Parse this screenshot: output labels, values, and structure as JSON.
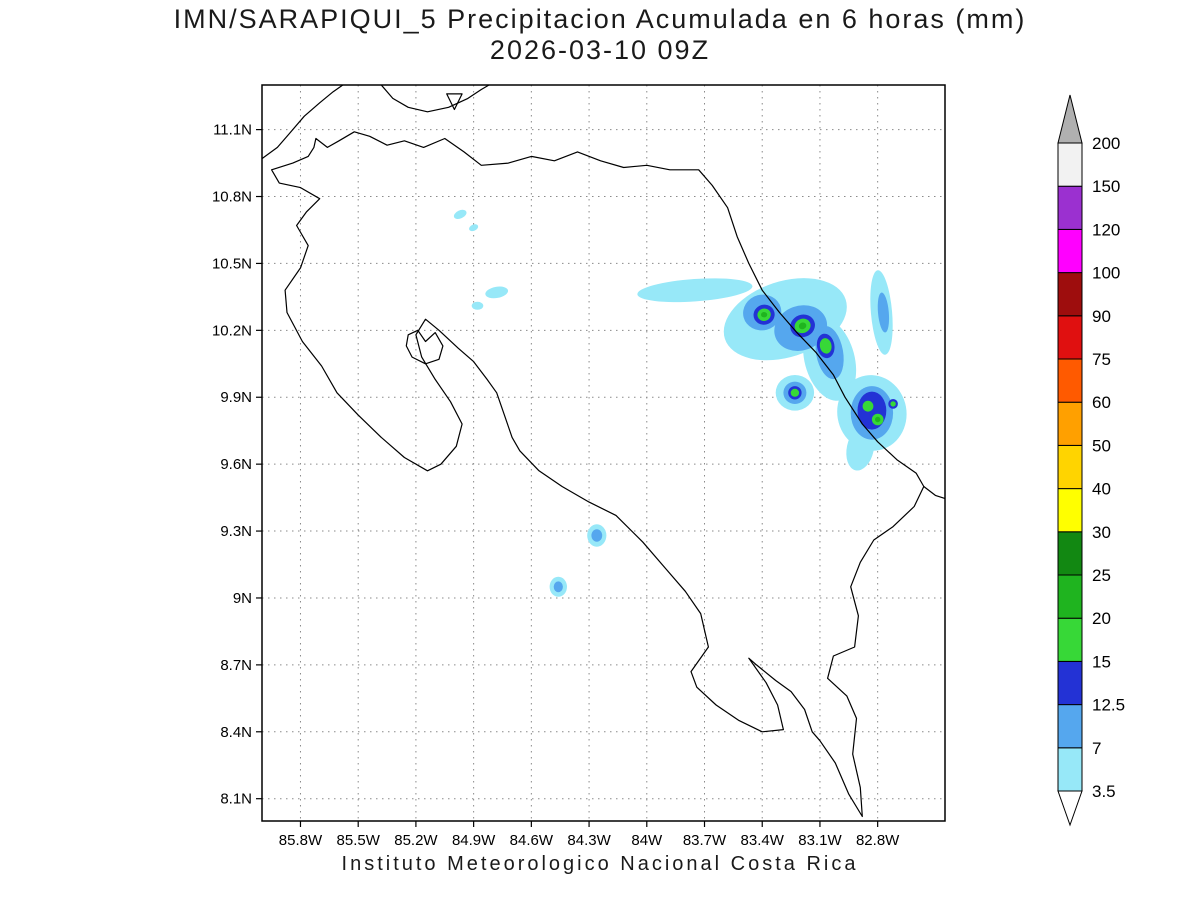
{
  "chart_data": {
    "type": "heatmap",
    "title": "IMN/SARAPIQUI_5 Precipitacion Acumulada en 6 horas (mm)",
    "subtitle": "2026-03-10 09Z",
    "units_label": "mm",
    "source_caption": "Instituto Meteorologico Nacional Costa Rica",
    "grid": "dotted",
    "legend_position": "right",
    "lon_range_w": [
      86.0,
      82.45
    ],
    "lat_range": [
      8.0,
      11.3
    ],
    "lon_ticks": {
      "values": [
        85.8,
        85.5,
        85.2,
        84.9,
        84.6,
        84.3,
        84.0,
        83.7,
        83.4,
        83.1,
        82.8
      ],
      "labels": [
        "85.8W",
        "85.5W",
        "85.2W",
        "84.9W",
        "84.6W",
        "84.3W",
        "84W",
        "83.7W",
        "83.4W",
        "83.1W",
        "82.8W"
      ]
    },
    "lat_ticks": {
      "values": [
        11.1,
        10.8,
        10.5,
        10.2,
        9.9,
        9.6,
        9.3,
        9.0,
        8.7,
        8.4,
        8.1
      ],
      "labels": [
        "11.1N",
        "10.8N",
        "10.5N",
        "10.2N",
        "9.9N",
        "9.6N",
        "9.3N",
        "9N",
        "8.7N",
        "8.4N",
        "8.1N"
      ]
    },
    "colorbar": {
      "levels": [
        3.5,
        7,
        12.5,
        15,
        20,
        25,
        30,
        40,
        50,
        60,
        75,
        90,
        100,
        120,
        150,
        200
      ],
      "labels": [
        "3.5",
        "7",
        "12.5",
        "15",
        "20",
        "25",
        "30",
        "40",
        "50",
        "60",
        "75",
        "90",
        "100",
        "120",
        "150",
        "200"
      ],
      "segment_colors": [
        "#97e8f8",
        "#55a7ee",
        "#2332d5",
        "#37d837",
        "#1fb41f",
        "#128812",
        "#ffff00",
        "#ffd400",
        "#ffa000",
        "#ff5a00",
        "#e01010",
        "#9e0d0d",
        "#ff00ff",
        "#9b30d0",
        "#f2f2f2"
      ],
      "below_color": "#ffffff",
      "above_color": "#b0b0b0"
    },
    "coastlines": [
      {
        "name": "costa-rica-outline",
        "points": [
          [
            85.72,
            11.06
          ],
          [
            85.66,
            11.02
          ],
          [
            85.6,
            11.05
          ],
          [
            85.52,
            11.09
          ],
          [
            85.44,
            11.07
          ],
          [
            85.35,
            11.03
          ],
          [
            85.26,
            11.05
          ],
          [
            85.16,
            11.02
          ],
          [
            85.05,
            11.06
          ],
          [
            84.95,
            11.0
          ],
          [
            84.86,
            10.94
          ],
          [
            84.72,
            10.95
          ],
          [
            84.6,
            10.98
          ],
          [
            84.48,
            10.96
          ],
          [
            84.36,
            11.0
          ],
          [
            84.24,
            10.96
          ],
          [
            84.12,
            10.93
          ],
          [
            84.0,
            10.94
          ],
          [
            83.88,
            10.92
          ],
          [
            83.73,
            10.92
          ],
          [
            83.66,
            10.85
          ],
          [
            83.58,
            10.75
          ],
          [
            83.53,
            10.62
          ],
          [
            83.47,
            10.5
          ],
          [
            83.4,
            10.38
          ],
          [
            83.31,
            10.28
          ],
          [
            83.22,
            10.19
          ],
          [
            83.12,
            10.1
          ],
          [
            83.03,
            10.0
          ],
          [
            82.97,
            9.9
          ],
          [
            82.88,
            9.78
          ],
          [
            82.8,
            9.7
          ],
          [
            82.7,
            9.62
          ],
          [
            82.6,
            9.56
          ],
          [
            82.56,
            9.5
          ],
          [
            82.61,
            9.41
          ],
          [
            82.72,
            9.32
          ],
          [
            82.82,
            9.26
          ],
          [
            82.89,
            9.16
          ],
          [
            82.94,
            9.05
          ],
          [
            82.9,
            8.92
          ],
          [
            82.92,
            8.78
          ],
          [
            83.03,
            8.74
          ],
          [
            83.06,
            8.64
          ],
          [
            82.96,
            8.56
          ],
          [
            82.91,
            8.46
          ],
          [
            82.93,
            8.3
          ],
          [
            82.89,
            8.15
          ],
          [
            82.88,
            8.02
          ],
          [
            82.95,
            8.12
          ],
          [
            83.02,
            8.26
          ],
          [
            83.1,
            8.36
          ],
          [
            83.14,
            8.4
          ],
          [
            83.18,
            8.5
          ],
          [
            83.25,
            8.58
          ],
          [
            83.33,
            8.63
          ],
          [
            83.43,
            8.7
          ],
          [
            83.47,
            8.73
          ],
          [
            83.38,
            8.62
          ],
          [
            83.32,
            8.52
          ],
          [
            83.29,
            8.41
          ],
          [
            83.4,
            8.4
          ],
          [
            83.52,
            8.45
          ],
          [
            83.64,
            8.52
          ],
          [
            83.74,
            8.6
          ],
          [
            83.77,
            8.67
          ],
          [
            83.68,
            8.78
          ],
          [
            83.72,
            8.93
          ],
          [
            83.8,
            9.03
          ],
          [
            83.9,
            9.13
          ],
          [
            84.02,
            9.25
          ],
          [
            84.16,
            9.37
          ],
          [
            84.3,
            9.43
          ],
          [
            84.44,
            9.5
          ],
          [
            84.56,
            9.57
          ],
          [
            84.66,
            9.66
          ],
          [
            84.7,
            9.72
          ],
          [
            84.74,
            9.82
          ],
          [
            84.78,
            9.92
          ],
          [
            84.83,
            9.98
          ],
          [
            84.9,
            10.06
          ],
          [
            84.98,
            10.12
          ],
          [
            85.08,
            10.2
          ],
          [
            85.15,
            10.25
          ],
          [
            85.2,
            10.18
          ],
          [
            85.17,
            10.08
          ],
          [
            85.1,
            9.98
          ],
          [
            85.02,
            9.88
          ],
          [
            84.96,
            9.78
          ],
          [
            84.99,
            9.68
          ],
          [
            85.07,
            9.6
          ],
          [
            85.14,
            9.57
          ],
          [
            85.26,
            9.63
          ],
          [
            85.38,
            9.72
          ],
          [
            85.5,
            9.82
          ],
          [
            85.61,
            9.92
          ],
          [
            85.69,
            10.04
          ],
          [
            85.79,
            10.15
          ],
          [
            85.87,
            10.28
          ],
          [
            85.88,
            10.38
          ],
          [
            85.8,
            10.48
          ],
          [
            85.76,
            10.58
          ],
          [
            85.82,
            10.67
          ],
          [
            85.77,
            10.73
          ],
          [
            85.7,
            10.79
          ],
          [
            85.8,
            10.84
          ],
          [
            85.91,
            10.86
          ],
          [
            85.95,
            10.92
          ],
          [
            85.84,
            10.95
          ],
          [
            85.76,
            10.98
          ],
          [
            85.73,
            11.02
          ],
          [
            85.72,
            11.06
          ]
        ]
      },
      {
        "name": "panama-caribbean-coast",
        "points": [
          [
            82.56,
            9.5
          ],
          [
            82.5,
            9.46
          ],
          [
            82.43,
            9.44
          ]
        ]
      },
      {
        "name": "nicaragua-pacific-coast",
        "points": [
          [
            86.0,
            10.97
          ],
          [
            85.92,
            11.02
          ],
          [
            85.86,
            11.08
          ],
          [
            85.78,
            11.16
          ],
          [
            85.7,
            11.22
          ],
          [
            85.63,
            11.27
          ],
          [
            85.58,
            11.3
          ]
        ]
      },
      {
        "name": "lake-nicaragua-shore",
        "points": [
          [
            85.38,
            11.3
          ],
          [
            85.32,
            11.24
          ],
          [
            85.24,
            11.2
          ],
          [
            85.14,
            11.18
          ],
          [
            85.03,
            11.2
          ],
          [
            84.93,
            11.24
          ],
          [
            84.86,
            11.28
          ],
          [
            84.82,
            11.3
          ]
        ]
      },
      {
        "name": "ometepe-island",
        "points": [
          [
            85.04,
            11.26
          ],
          [
            85.0,
            11.19
          ],
          [
            84.96,
            11.26
          ],
          [
            85.04,
            11.26
          ]
        ]
      },
      {
        "name": "gulf-of-nicoya-island",
        "points": [
          [
            85.24,
            10.18
          ],
          [
            85.19,
            10.2
          ],
          [
            85.15,
            10.15
          ],
          [
            85.1,
            10.19
          ],
          [
            85.06,
            10.13
          ],
          [
            85.08,
            10.07
          ],
          [
            85.15,
            10.05
          ],
          [
            85.22,
            10.08
          ],
          [
            85.25,
            10.13
          ],
          [
            85.24,
            10.18
          ]
        ]
      }
    ],
    "precip_cells": [
      {
        "lon_w": 83.75,
        "lat": 10.38,
        "rx_deg": 0.3,
        "ry_deg": 0.05,
        "rot_deg": -4,
        "level": 3.5
      },
      {
        "lon_w": 84.78,
        "lat": 10.37,
        "rx_deg": 0.06,
        "ry_deg": 0.025,
        "rot_deg": -10,
        "level": 3.5
      },
      {
        "lon_w": 84.88,
        "lat": 10.31,
        "rx_deg": 0.03,
        "ry_deg": 0.018,
        "rot_deg": 0,
        "level": 3.5
      },
      {
        "lon_w": 84.97,
        "lat": 10.72,
        "rx_deg": 0.035,
        "ry_deg": 0.018,
        "rot_deg": -25,
        "level": 3.5
      },
      {
        "lon_w": 84.9,
        "lat": 10.66,
        "rx_deg": 0.025,
        "ry_deg": 0.014,
        "rot_deg": -25,
        "level": 3.5
      },
      {
        "lon_w": 83.28,
        "lat": 10.25,
        "rx_deg": 0.33,
        "ry_deg": 0.17,
        "rot_deg": -18,
        "level": 3.5
      },
      {
        "lon_w": 83.05,
        "lat": 10.07,
        "rx_deg": 0.13,
        "ry_deg": 0.19,
        "rot_deg": -15,
        "level": 3.5
      },
      {
        "lon_w": 82.78,
        "lat": 10.28,
        "rx_deg": 0.055,
        "ry_deg": 0.19,
        "rot_deg": -5,
        "level": 3.5
      },
      {
        "lon_w": 83.23,
        "lat": 9.92,
        "rx_deg": 0.1,
        "ry_deg": 0.08,
        "rot_deg": 0,
        "level": 3.5
      },
      {
        "lon_w": 82.83,
        "lat": 9.83,
        "rx_deg": 0.18,
        "ry_deg": 0.17,
        "rot_deg": -10,
        "level": 3.5
      },
      {
        "lon_w": 82.89,
        "lat": 9.67,
        "rx_deg": 0.07,
        "ry_deg": 0.1,
        "rot_deg": 12,
        "level": 3.5
      },
      {
        "lon_w": 84.26,
        "lat": 9.28,
        "rx_deg": 0.05,
        "ry_deg": 0.05,
        "rot_deg": 0,
        "level": 3.5
      },
      {
        "lon_w": 84.46,
        "lat": 9.05,
        "rx_deg": 0.045,
        "ry_deg": 0.045,
        "rot_deg": 0,
        "level": 3.5
      },
      {
        "lon_w": 83.4,
        "lat": 10.28,
        "rx_deg": 0.1,
        "ry_deg": 0.08,
        "rot_deg": -15,
        "level": 7
      },
      {
        "lon_w": 83.2,
        "lat": 10.21,
        "rx_deg": 0.14,
        "ry_deg": 0.1,
        "rot_deg": -20,
        "level": 7
      },
      {
        "lon_w": 83.05,
        "lat": 10.1,
        "rx_deg": 0.07,
        "ry_deg": 0.12,
        "rot_deg": -10,
        "level": 7
      },
      {
        "lon_w": 82.77,
        "lat": 10.28,
        "rx_deg": 0.028,
        "ry_deg": 0.09,
        "rot_deg": -5,
        "level": 7
      },
      {
        "lon_w": 83.23,
        "lat": 9.92,
        "rx_deg": 0.06,
        "ry_deg": 0.05,
        "rot_deg": 0,
        "level": 7
      },
      {
        "lon_w": 82.83,
        "lat": 9.83,
        "rx_deg": 0.11,
        "ry_deg": 0.12,
        "rot_deg": 0,
        "level": 7
      },
      {
        "lon_w": 84.26,
        "lat": 9.28,
        "rx_deg": 0.028,
        "ry_deg": 0.028,
        "rot_deg": 0,
        "level": 7
      },
      {
        "lon_w": 84.46,
        "lat": 9.05,
        "rx_deg": 0.024,
        "ry_deg": 0.024,
        "rot_deg": 0,
        "level": 7
      },
      {
        "lon_w": 83.39,
        "lat": 10.27,
        "rx_deg": 0.055,
        "ry_deg": 0.045,
        "rot_deg": -15,
        "level": 12.5
      },
      {
        "lon_w": 83.19,
        "lat": 10.22,
        "rx_deg": 0.065,
        "ry_deg": 0.05,
        "rot_deg": -20,
        "level": 12.5
      },
      {
        "lon_w": 83.07,
        "lat": 10.13,
        "rx_deg": 0.045,
        "ry_deg": 0.055,
        "rot_deg": -10,
        "level": 12.5
      },
      {
        "lon_w": 83.23,
        "lat": 9.92,
        "rx_deg": 0.035,
        "ry_deg": 0.03,
        "rot_deg": 0,
        "level": 12.5
      },
      {
        "lon_w": 82.83,
        "lat": 9.84,
        "rx_deg": 0.075,
        "ry_deg": 0.085,
        "rot_deg": 0,
        "level": 12.5
      },
      {
        "lon_w": 82.72,
        "lat": 9.87,
        "rx_deg": 0.025,
        "ry_deg": 0.022,
        "rot_deg": 0,
        "level": 12.5
      },
      {
        "lon_w": 83.39,
        "lat": 10.27,
        "rx_deg": 0.035,
        "ry_deg": 0.028,
        "rot_deg": -15,
        "level": 15
      },
      {
        "lon_w": 83.19,
        "lat": 10.22,
        "rx_deg": 0.042,
        "ry_deg": 0.032,
        "rot_deg": -20,
        "level": 15
      },
      {
        "lon_w": 83.07,
        "lat": 10.13,
        "rx_deg": 0.03,
        "ry_deg": 0.035,
        "rot_deg": -10,
        "level": 15
      },
      {
        "lon_w": 83.23,
        "lat": 9.92,
        "rx_deg": 0.022,
        "ry_deg": 0.018,
        "rot_deg": 0,
        "level": 15
      },
      {
        "lon_w": 82.85,
        "lat": 9.86,
        "rx_deg": 0.028,
        "ry_deg": 0.024,
        "rot_deg": 0,
        "level": 15
      },
      {
        "lon_w": 82.8,
        "lat": 9.8,
        "rx_deg": 0.03,
        "ry_deg": 0.026,
        "rot_deg": 0,
        "level": 15
      },
      {
        "lon_w": 82.72,
        "lat": 9.87,
        "rx_deg": 0.014,
        "ry_deg": 0.012,
        "rot_deg": 0,
        "level": 15
      },
      {
        "lon_w": 83.19,
        "lat": 10.22,
        "rx_deg": 0.02,
        "ry_deg": 0.015,
        "rot_deg": -20,
        "level": 20
      },
      {
        "lon_w": 83.39,
        "lat": 10.27,
        "rx_deg": 0.016,
        "ry_deg": 0.012,
        "rot_deg": 0,
        "level": 20
      },
      {
        "lon_w": 82.8,
        "lat": 9.8,
        "rx_deg": 0.014,
        "ry_deg": 0.012,
        "rot_deg": 0,
        "level": 20
      }
    ]
  }
}
